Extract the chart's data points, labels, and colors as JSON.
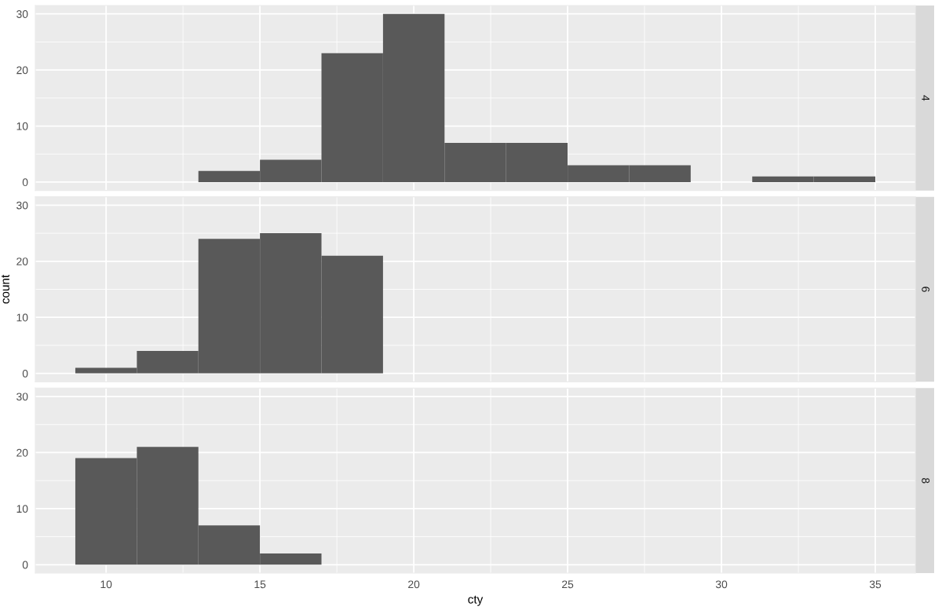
{
  "chart_data": [
    {
      "type": "histogram",
      "annotations": [
        "4"
      ],
      "bins": [
        9,
        11,
        13,
        15,
        17,
        19,
        21,
        23,
        25,
        27,
        29,
        31,
        33,
        35
      ],
      "values": [
        0,
        0,
        2,
        4,
        23,
        30,
        7,
        7,
        3,
        3,
        0,
        1,
        1
      ],
      "color": "#595959",
      "xlim": [
        7.7,
        36.3
      ],
      "xticks": [
        10,
        15,
        20,
        25,
        30,
        35
      ],
      "ylim": [
        -1.5,
        31.5
      ],
      "yticks": [
        0,
        10,
        20,
        30
      ],
      "grid": true,
      "tick_labels": "y"
    },
    {
      "type": "histogram",
      "annotations": [
        "6"
      ],
      "ylabel": "count",
      "bins": [
        9,
        11,
        13,
        15,
        17,
        19,
        21,
        23,
        25,
        27,
        29,
        31,
        33,
        35
      ],
      "values": [
        1,
        4,
        24,
        25,
        21,
        0,
        0,
        0,
        0,
        0,
        0,
        0,
        0
      ],
      "color": "#595959",
      "xlim": [
        7.7,
        36.3
      ],
      "xticks": [
        10,
        15,
        20,
        25,
        30,
        35
      ],
      "ylim": [
        -1.5,
        31.5
      ],
      "yticks": [
        0,
        10,
        20,
        30
      ],
      "grid": true,
      "tick_labels": "y"
    },
    {
      "type": "histogram",
      "annotations": [
        "8"
      ],
      "xlabel": "cty",
      "bins": [
        9,
        11,
        13,
        15,
        17,
        19,
        21,
        23,
        25,
        27,
        29,
        31,
        33,
        35
      ],
      "values": [
        19,
        21,
        7,
        2,
        0,
        0,
        0,
        0,
        0,
        0,
        0,
        0,
        0
      ],
      "color": "#595959",
      "xlim": [
        7.7,
        36.3
      ],
      "xticks": [
        10,
        15,
        20,
        25,
        30,
        35
      ],
      "ylim": [
        -1.5,
        31.5
      ],
      "yticks": [
        0,
        10,
        20,
        30
      ],
      "grid": true
    }
  ]
}
